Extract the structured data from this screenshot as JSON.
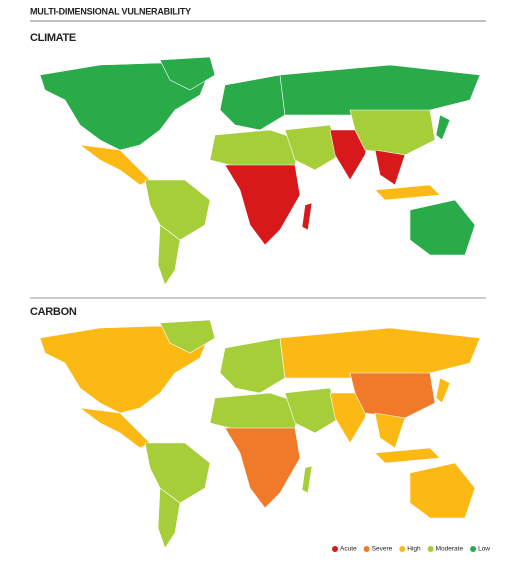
{
  "title": "MULTI-DIMENSIONAL VULNERABILITY",
  "maps": [
    {
      "label": "CLIMATE"
    },
    {
      "label": "CARBON"
    }
  ],
  "legend": [
    {
      "name": "Acute",
      "color": "#d7191c"
    },
    {
      "name": "Severe",
      "color": "#f07a2a"
    },
    {
      "name": "High",
      "color": "#fdb913"
    },
    {
      "name": "Moderate",
      "color": "#a6ce39"
    },
    {
      "name": "Low",
      "color": "#2aab4a"
    }
  ]
}
